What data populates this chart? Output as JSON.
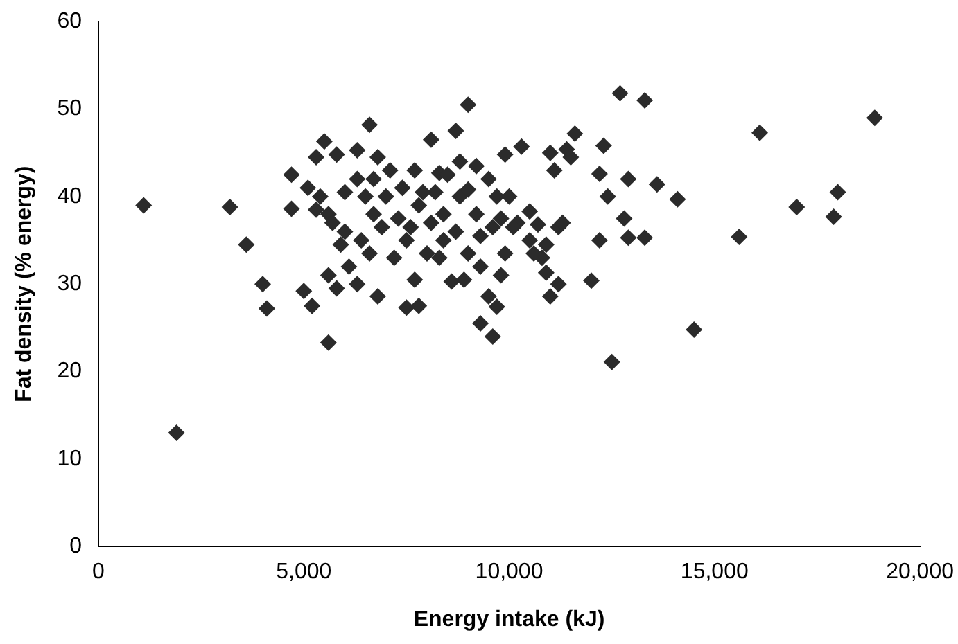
{
  "chart_data": {
    "type": "scatter",
    "xlabel": "Energy intake (kJ)",
    "ylabel": "Fat density (% energy)",
    "color": "#2b2b2b",
    "marker": "diamond",
    "grid": false,
    "legend": false,
    "xlim": [
      0,
      20000
    ],
    "xticks": [
      0,
      {
        "value": 5000,
        "label": "5,000"
      },
      {
        "value": 10000,
        "label": "10,000"
      },
      {
        "value": 15000,
        "label": "15,000"
      },
      {
        "value": 20000,
        "label": "20,000"
      }
    ],
    "ylim": [
      0,
      60
    ],
    "yticks": [
      0,
      10,
      20,
      30,
      40,
      50,
      60
    ],
    "x": [
      1100,
      1900,
      3200,
      3600,
      4000,
      4100,
      4700,
      4700,
      5000,
      5200,
      5600,
      18900,
      18000,
      17900,
      17000,
      16100,
      15600,
      14500,
      12500,
      12700,
      13300,
      14100,
      13600,
      12900,
      12800,
      12900,
      13300,
      12400,
      12200,
      12200,
      12300,
      12000,
      11600,
      11400,
      11100,
      11000,
      10900,
      11000,
      11200,
      10800,
      10700,
      10500,
      10300,
      9900,
      10000,
      9600,
      9300,
      9700,
      9800,
      9500,
      9000,
      8700,
      8800,
      8300,
      8100,
      7800,
      7500,
      6600,
      5500,
      5300,
      6300,
      6800,
      5800,
      5100,
      5400,
      5600,
      6000,
      6400,
      6100,
      6300,
      6800,
      7200,
      7500,
      7700,
      8000,
      8400,
      8600,
      8900,
      9000,
      9300,
      9600,
      9200,
      9500,
      9700,
      8800,
      8400,
      8100,
      7800,
      7400,
      7000,
      6700,
      6500,
      6300,
      6000,
      5700,
      5300,
      7100,
      7700,
      8500,
      9200,
      9800,
      10200,
      10500,
      10600,
      9900,
      8300,
      7600,
      6900,
      6600,
      5900,
      5800,
      5600,
      6700,
      7300,
      8700,
      9300,
      10100,
      9000,
      8200,
      7900,
      11200,
      11300,
      11500,
      10900
    ],
    "values": [
      39,
      13,
      38.8,
      34.5,
      30,
      27.2,
      42.5,
      38.6,
      29.2,
      27.5,
      23.3,
      49,
      40.5,
      37.7,
      38.8,
      47.3,
      35.4,
      24.8,
      21.1,
      51.8,
      51,
      39.7,
      41.4,
      42,
      37.5,
      35.3,
      35.3,
      40,
      42.6,
      35,
      45.8,
      30.4,
      47.2,
      45.4,
      43,
      45,
      31.3,
      28.6,
      30,
      33,
      36.8,
      38.3,
      45.7,
      44.8,
      40,
      24,
      25.5,
      27.4,
      31,
      28.6,
      50.5,
      47.5,
      44,
      42.7,
      46.5,
      27.5,
      27.3,
      48.2,
      46.3,
      44.5,
      45.3,
      44.5,
      44.8,
      41,
      40,
      38,
      36,
      35,
      32,
      30,
      28.6,
      33,
      35,
      30.5,
      33.5,
      35,
      30.3,
      30.5,
      33.5,
      35.5,
      36.5,
      38,
      42,
      40,
      40,
      38,
      37,
      39,
      41,
      40,
      38,
      40,
      42,
      40.5,
      37,
      38.5,
      43,
      43,
      42.5,
      43.5,
      37.5,
      37,
      35,
      33.5,
      33.5,
      33,
      36.5,
      36.5,
      33.5,
      34.5,
      29.5,
      31,
      42,
      37.5,
      36,
      32,
      36.5,
      40.8,
      40.5,
      40.5,
      36.5,
      37,
      44.5,
      34.5
    ]
  }
}
